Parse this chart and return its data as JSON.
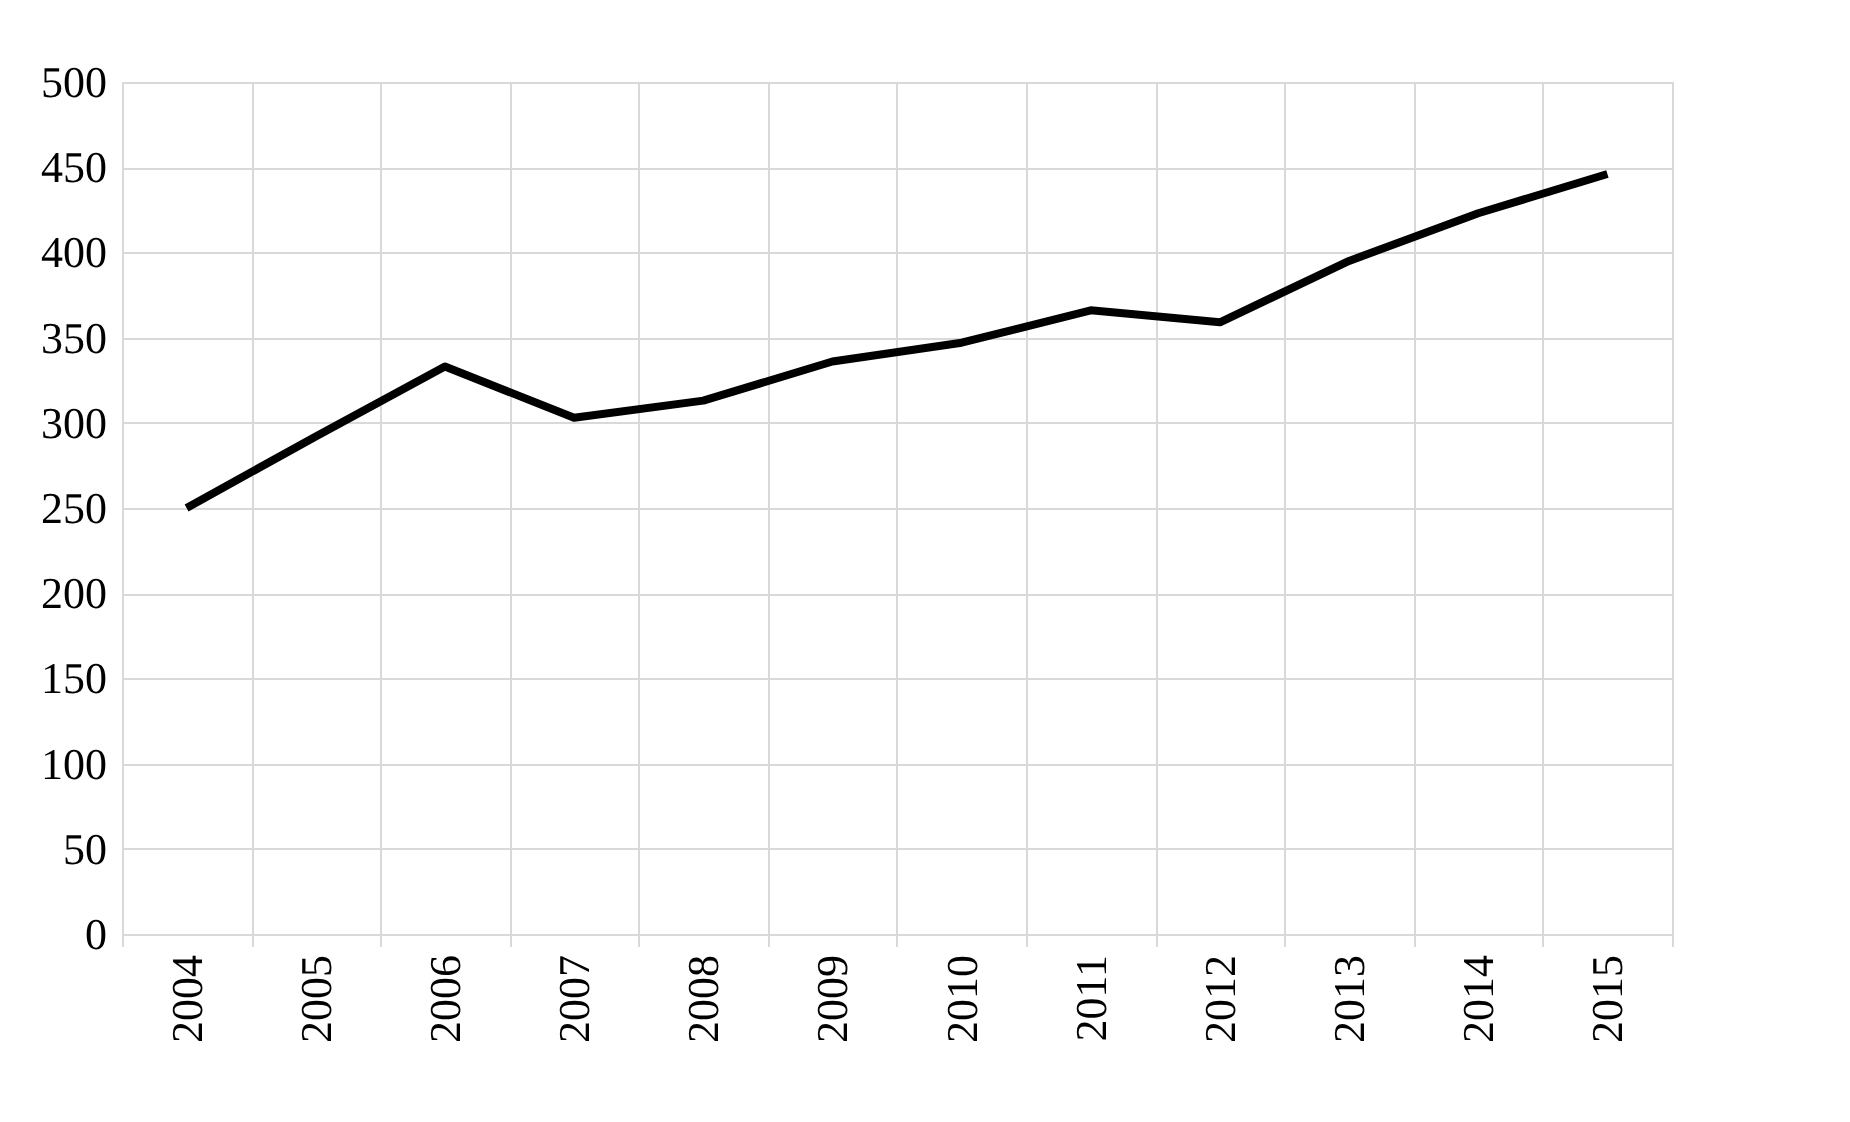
{
  "chart_data": {
    "type": "line",
    "categories": [
      "2004",
      "2005",
      "2006",
      "2007",
      "2008",
      "2009",
      "2010",
      "2011",
      "2012",
      "2013",
      "2014",
      "2015"
    ],
    "series": [
      {
        "color": "#000000",
        "values": [
          250,
          292,
          333,
          303,
          313,
          336,
          347,
          366,
          359,
          395,
          423,
          446
        ]
      }
    ],
    "ylim": [
      0,
      500
    ],
    "yticks": [
      0,
      50,
      100,
      150,
      200,
      250,
      300,
      350,
      400,
      450,
      500
    ],
    "grid": true,
    "marker": "none",
    "line_style": "solid"
  }
}
